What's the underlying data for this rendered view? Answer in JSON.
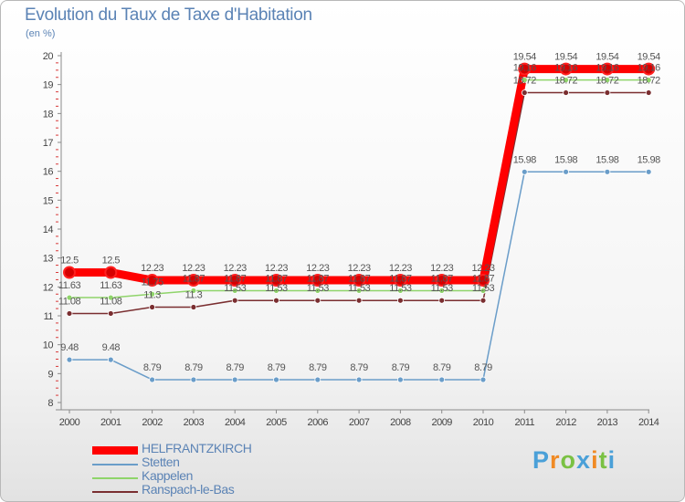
{
  "header": {
    "title": "Evolution du Taux de Taxe d'Habitation",
    "unit": "(en %)"
  },
  "brand": {
    "name": "Proxiti"
  },
  "chart_data": {
    "type": "line",
    "title": "Evolution du Taux de Taxe d'Habitation",
    "ylabel": "(en %)",
    "xlabel": "",
    "ylim": [
      8,
      20
    ],
    "grid": false,
    "legend_position": "bottom-left",
    "x": [
      "2000",
      "2001",
      "2002",
      "2003",
      "2004",
      "2005",
      "2006",
      "2007",
      "2008",
      "2009",
      "2010",
      "2011",
      "2012",
      "2013",
      "2014"
    ],
    "y_ticks": [
      "8",
      "9",
      "10",
      "11",
      "12",
      "13",
      "14",
      "15",
      "16",
      "17",
      "18",
      "19",
      "20"
    ],
    "series": [
      {
        "name": "HELFRANTZKIRCH",
        "color": "#ff0000",
        "values": [
          12.5,
          12.5,
          12.23,
          12.23,
          12.23,
          12.23,
          12.23,
          12.23,
          12.23,
          12.23,
          12.23,
          19.54,
          19.54,
          19.54,
          19.54
        ],
        "labels": [
          "12.5",
          "12.5",
          "12.23",
          "12.23",
          "12.23",
          "12.23",
          "12.23",
          "12.23",
          "12.23",
          "12.23",
          "12.23",
          "19.54",
          "19.54",
          "19.54",
          "19.54"
        ]
      },
      {
        "name": "Stetten",
        "color": "#6a9dc9",
        "values": [
          9.48,
          9.48,
          8.79,
          8.79,
          8.79,
          8.79,
          8.79,
          8.79,
          8.79,
          8.79,
          8.79,
          15.98,
          15.98,
          15.98,
          15.98
        ],
        "labels": [
          "9.48",
          "9.48",
          "8.79",
          "8.79",
          "8.79",
          "8.79",
          "8.79",
          "8.79",
          "8.79",
          "8.79",
          "8.79",
          "15.98",
          "15.98",
          "15.98",
          "15.98"
        ]
      },
      {
        "name": "Kappelen",
        "color": "#8fd46a",
        "values": [
          11.63,
          11.63,
          11.75,
          11.87,
          11.87,
          11.87,
          11.87,
          11.87,
          11.87,
          11.87,
          11.87,
          19.16,
          19.16,
          19.16,
          19.16
        ],
        "labels": [
          "11.63",
          "11.63",
          "11.75",
          "11.87",
          "11.87",
          "11.87",
          "11.87",
          "11.87",
          "11.87",
          "11.87",
          "11.87",
          "19.16",
          "19.16",
          "19.16",
          "19.16"
        ]
      },
      {
        "name": "Ranspach-le-Bas",
        "color": "#7a2e30",
        "values": [
          11.08,
          11.08,
          11.3,
          11.3,
          11.53,
          11.53,
          11.53,
          11.53,
          11.53,
          11.53,
          11.53,
          18.72,
          18.72,
          18.72,
          18.72
        ],
        "labels": [
          "11.08",
          "11.08",
          "11.3",
          "11.3",
          "11.53",
          "11.53",
          "11.53",
          "11.53",
          "11.53",
          "11.53",
          "11.53",
          "18.72",
          "18.72",
          "18.72",
          "18.72"
        ]
      }
    ]
  }
}
